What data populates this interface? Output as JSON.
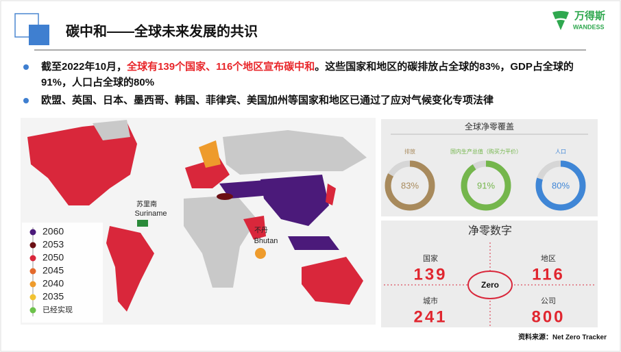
{
  "header": {
    "title": "碳中和——全球未来发展的共识",
    "logo_name": "万得斯",
    "logo_sub": "WANDESS"
  },
  "bullets": [
    {
      "parts": [
        {
          "text": "截至2022年10月，",
          "color": "#111111"
        },
        {
          "text": "全球有139个国家、116个地区宣布碳中和",
          "color": "#e8262a"
        },
        {
          "text": "。这些国家和地区的碳排放占全球的83%，GDP占全球的91%，人口占全球的80%",
          "color": "#111111"
        }
      ]
    },
    {
      "parts": [
        {
          "text": "欧盟、英国、日本、墨西哥、韩国、菲律宾、美国加州等国家和地区已通过了应对气候变化专项法律",
          "color": "#111111"
        }
      ]
    }
  ],
  "map": {
    "legend": [
      {
        "label": "2060",
        "color": "#4b1a7a"
      },
      {
        "label": "2053",
        "color": "#6b0f14"
      },
      {
        "label": "2050",
        "color": "#d9273b"
      },
      {
        "label": "2045",
        "color": "#e36a2c"
      },
      {
        "label": "2040",
        "color": "#ee9b2c"
      },
      {
        "label": "2035",
        "color": "#f1c232"
      },
      {
        "label": "已经实现",
        "color": "#6cc24a"
      }
    ],
    "places": [
      {
        "cn": "苏里南",
        "en": "Suriname"
      },
      {
        "cn": "不丹",
        "en": "Bhutan"
      }
    ]
  },
  "coverage": {
    "title": "全球净零覆盖",
    "items": [
      {
        "label": "排放",
        "value": 83,
        "value_label": "83%",
        "color": "#a88a5c"
      },
      {
        "label": "国内生产总值（购买力平价）",
        "value": 91,
        "value_label": "91%",
        "color": "#74b64c"
      },
      {
        "label": "人口",
        "value": 80,
        "value_label": "80%",
        "color": "#3f86d6"
      }
    ]
  },
  "numbers": {
    "title": "净零数字",
    "center": "Zero",
    "items": [
      {
        "label": "国家",
        "value": "139"
      },
      {
        "label": "地区",
        "value": "116"
      },
      {
        "label": "城市",
        "value": "241"
      },
      {
        "label": "公司",
        "value": "800"
      }
    ]
  },
  "source": "资料来源：Net Zero Tracker"
}
